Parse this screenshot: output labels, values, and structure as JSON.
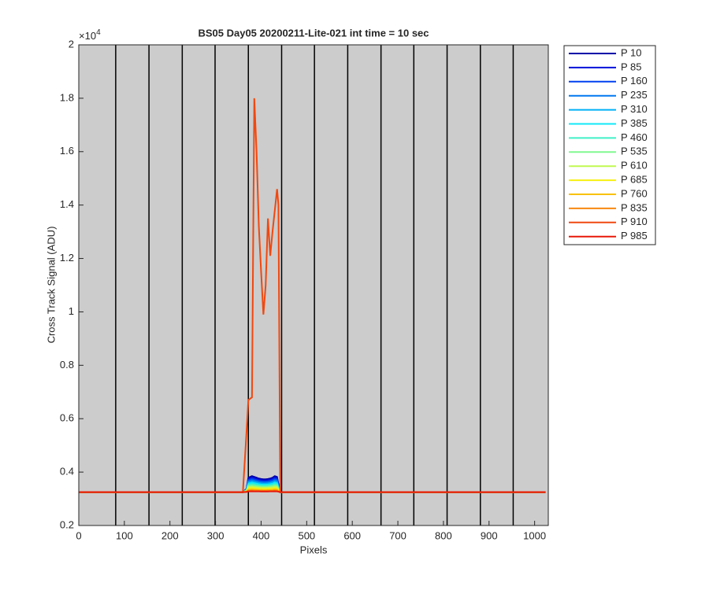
{
  "chart_data": {
    "type": "line",
    "title": "BS05 Day05 20200211-Lite-021 int time = 10 sec",
    "x_label": "Pixels",
    "y_label": "Cross Track Signal (ADU)",
    "y_multiplier": {
      "base": "×10",
      "exponent": "4"
    },
    "xlim": [
      0,
      1030
    ],
    "xticks": [
      0,
      100,
      200,
      300,
      400,
      500,
      600,
      700,
      800,
      900,
      1000
    ],
    "ylim": [
      2000,
      20000
    ],
    "yticks": [
      {
        "value": 2000,
        "label": "0.2"
      },
      {
        "value": 4000,
        "label": "0.4"
      },
      {
        "value": 6000,
        "label": "0.6"
      },
      {
        "value": 8000,
        "label": "0.8"
      },
      {
        "value": 10000,
        "label": "1"
      },
      {
        "value": 12000,
        "label": "1.2"
      },
      {
        "value": 14000,
        "label": "1.4"
      },
      {
        "value": 16000,
        "label": "1.6"
      },
      {
        "value": 18000,
        "label": "1.8"
      },
      {
        "value": 20000,
        "label": "2"
      }
    ],
    "background": "#cccccc",
    "vlines": [
      81,
      154,
      227,
      299,
      372,
      445,
      517,
      590,
      663,
      735,
      808,
      881,
      953
    ],
    "vline_color": "#000000",
    "legend": "outside-top-right",
    "x": [
      0,
      360,
      368,
      372,
      380,
      385,
      390,
      395,
      400,
      405,
      410,
      415,
      420,
      425,
      430,
      435,
      438,
      442,
      1024
    ],
    "series": [
      {
        "name": "P 10",
        "color": "#0000a8",
        "values": [
          3250,
          3250,
          3370,
          3790,
          3850,
          3820,
          3790,
          3760,
          3742,
          3730,
          3730,
          3742,
          3760,
          3790,
          3850,
          3820,
          3550,
          3250,
          3250
        ]
      },
      {
        "name": "P 85",
        "color": "#0010d8",
        "values": [
          3250,
          3250,
          3360,
          3745,
          3800,
          3773,
          3745,
          3718,
          3701,
          3690,
          3690,
          3701,
          3718,
          3745,
          3800,
          3773,
          3525,
          3250,
          3250
        ]
      },
      {
        "name": "P 160",
        "color": "#0040f0",
        "values": [
          3250,
          3250,
          3350,
          3700,
          3750,
          3725,
          3700,
          3675,
          3660,
          3650,
          3650,
          3660,
          3675,
          3700,
          3750,
          3725,
          3500,
          3250,
          3250
        ]
      },
      {
        "name": "P 235",
        "color": "#0078f0",
        "values": [
          3250,
          3250,
          3340,
          3655,
          3700,
          3678,
          3655,
          3633,
          3619,
          3610,
          3610,
          3619,
          3633,
          3655,
          3700,
          3678,
          3475,
          3250,
          3250
        ]
      },
      {
        "name": "P 310",
        "color": "#00b0f8",
        "values": [
          3250,
          3250,
          3330,
          3610,
          3650,
          3630,
          3610,
          3590,
          3578,
          3570,
          3570,
          3578,
          3590,
          3610,
          3650,
          3630,
          3450,
          3250,
          3250
        ]
      },
      {
        "name": "P 385",
        "color": "#10e8f8",
        "values": [
          3250,
          3250,
          3320,
          3565,
          3600,
          3583,
          3565,
          3548,
          3537,
          3530,
          3530,
          3537,
          3548,
          3565,
          3600,
          3583,
          3425,
          3250,
          3250
        ]
      },
      {
        "name": "P 460",
        "color": "#40f0c8",
        "values": [
          3250,
          3250,
          3310,
          3520,
          3550,
          3535,
          3520,
          3505,
          3496,
          3490,
          3490,
          3496,
          3505,
          3520,
          3550,
          3535,
          3400,
          3250,
          3250
        ]
      },
      {
        "name": "P 535",
        "color": "#80f890",
        "values": [
          3250,
          3250,
          3300,
          3475,
          3500,
          3488,
          3475,
          3463,
          3455,
          3450,
          3450,
          3455,
          3463,
          3475,
          3500,
          3488,
          3375,
          3250,
          3250
        ]
      },
      {
        "name": "P 610",
        "color": "#c0f850",
        "values": [
          3250,
          3250,
          3290,
          3430,
          3450,
          3440,
          3430,
          3420,
          3414,
          3410,
          3410,
          3414,
          3420,
          3430,
          3450,
          3440,
          3350,
          3250,
          3250
        ]
      },
      {
        "name": "P 685",
        "color": "#f8f010",
        "values": [
          3250,
          3250,
          3280,
          3385,
          3400,
          3393,
          3385,
          3378,
          3373,
          3370,
          3370,
          3373,
          3378,
          3385,
          3400,
          3393,
          3325,
          3250,
          3250
        ]
      },
      {
        "name": "P 760",
        "color": "#f8c000",
        "values": [
          3250,
          3250,
          3270,
          3340,
          3350,
          3345,
          3340,
          3335,
          3332,
          3330,
          3330,
          3332,
          3335,
          3340,
          3350,
          3345,
          3300,
          3250,
          3250
        ]
      },
      {
        "name": "P 835",
        "color": "#f88810",
        "values": [
          3250,
          3250,
          3262,
          3304,
          3310,
          3307,
          3304,
          3301,
          3299,
          3298,
          3298,
          3299,
          3301,
          3304,
          3310,
          3307,
          3280,
          3250,
          3250
        ]
      },
      {
        "name": "P 910",
        "color": "#f04810",
        "values": [
          3250,
          3250,
          5500,
          6700,
          6800,
          18000,
          16000,
          13200,
          11500,
          9900,
          11000,
          13500,
          12100,
          13000,
          13800,
          14600,
          14000,
          3250,
          3250
        ]
      },
      {
        "name": "P 985",
        "color": "#e81808",
        "values": [
          3250,
          3250,
          3256,
          3277,
          3280,
          3279,
          3277,
          3276,
          3275,
          3274,
          3274,
          3275,
          3276,
          3277,
          3280,
          3279,
          3265,
          3250,
          3250
        ]
      }
    ]
  }
}
